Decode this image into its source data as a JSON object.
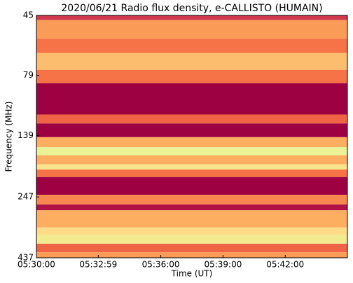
{
  "chart_data": {
    "type": "heatmap",
    "title": "2020/06/21  Radio flux density, e-CALLISTO (HUMAIN)",
    "x_label": "Time (UT)",
    "y_label": "Frequency (MHz)",
    "xlim": [
      19800,
      20700
    ],
    "xticks": [
      {
        "value": 19800,
        "label": "05:30:00"
      },
      {
        "value": 19979,
        "label": "05:32:59"
      },
      {
        "value": 20160,
        "label": "05:36:00"
      },
      {
        "value": 20340,
        "label": "05:39:00"
      },
      {
        "value": 20520,
        "label": "05:42:00"
      }
    ],
    "ylim": [
      45,
      437
    ],
    "yscale": "log",
    "y_inverted": true,
    "yticks": [
      45,
      79,
      139,
      247,
      437
    ],
    "bins": [
      45,
      47,
      56,
      64,
      75,
      85,
      114,
      124,
      141,
      155,
      167,
      182,
      191,
      205,
      242,
      265,
      280,
      329,
      352,
      383,
      415,
      437
    ],
    "levels": [
      0.15,
      0.45,
      0.35,
      0.55,
      0.35,
      0.0,
      0.3,
      0.0,
      0.5,
      0.8,
      0.5,
      0.7,
      0.35,
      0.0,
      0.4,
      0.05,
      0.5,
      0.65,
      0.75,
      0.3,
      0.45
    ],
    "colormap": [
      "#9e0142",
      "#d53e4f",
      "#f46d43",
      "#fdae61",
      "#fee08b",
      "#e6f598",
      "#abdda4"
    ]
  }
}
